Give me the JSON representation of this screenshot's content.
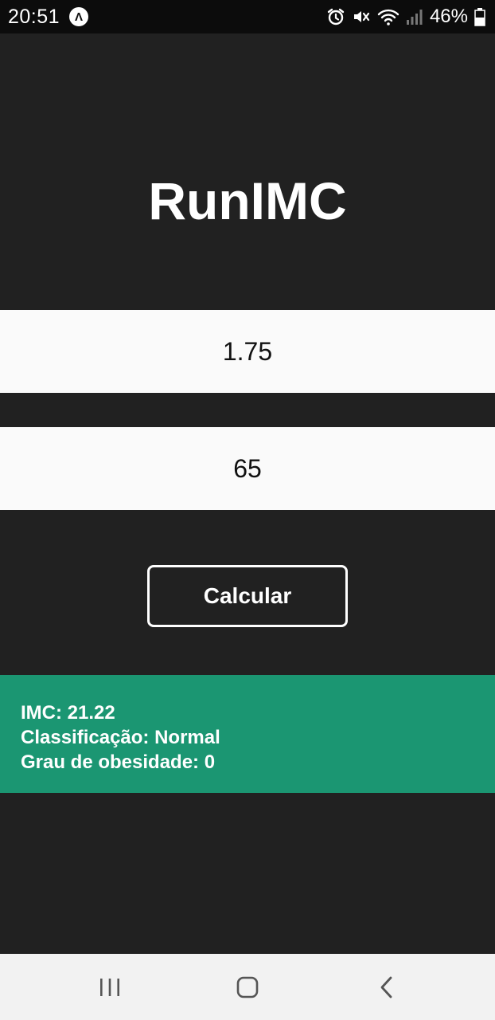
{
  "status_bar": {
    "time": "20:51",
    "expo_badge": "Λ",
    "battery_percent": "46%",
    "icons": [
      "expo-icon",
      "alarm-icon",
      "mute-icon",
      "wifi-icon",
      "signal-icon",
      "battery-icon"
    ]
  },
  "app": {
    "title": "RunIMC"
  },
  "form": {
    "height_value": "1.75",
    "weight_value": "65",
    "calculate_label": "Calcular"
  },
  "result": {
    "imc_line": "IMC: 21.22",
    "classification_line": "Classificação: Normal",
    "obesity_line": "Grau de obesidade: 0",
    "background_color": "#1b9672"
  },
  "nav_bar": {
    "icons": [
      "recents-icon",
      "home-icon",
      "back-icon"
    ]
  }
}
